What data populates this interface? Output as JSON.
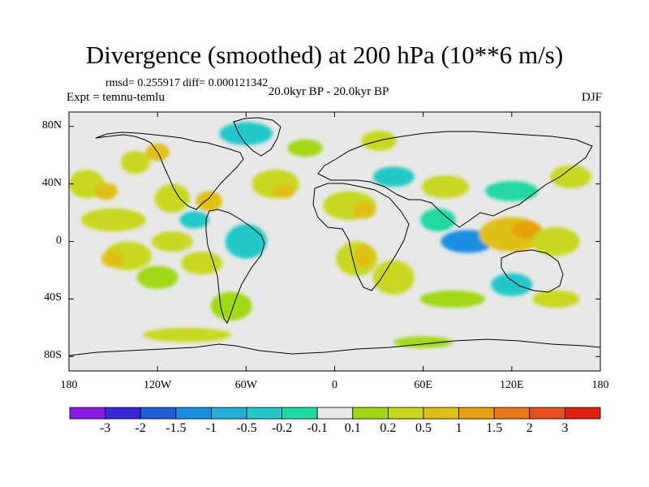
{
  "title": "Divergence (smoothed) at 200 hPa (10**6 m/s)",
  "stats": "rmsd= 0.255917 diff= 0.000121342",
  "experiment": "Expt = temnu-temlu",
  "period": "20.0kyr BP - 20.0kyr BP",
  "season": "DJF",
  "map": {
    "lat_range": [
      -90,
      90
    ],
    "lon_range": [
      -180,
      180
    ],
    "lat_ticks": [
      {
        "value": 80,
        "label": "80N"
      },
      {
        "value": 40,
        "label": "40N"
      },
      {
        "value": 0,
        "label": "0"
      },
      {
        "value": -40,
        "label": "40S"
      },
      {
        "value": -80,
        "label": "80S"
      }
    ],
    "lon_ticks": [
      {
        "value": -180,
        "label": "180"
      },
      {
        "value": -120,
        "label": "120W"
      },
      {
        "value": -60,
        "label": "60W"
      },
      {
        "value": 0,
        "label": "0"
      },
      {
        "value": 60,
        "label": "60E"
      },
      {
        "value": 120,
        "label": "120E"
      },
      {
        "value": 180,
        "label": "180"
      }
    ],
    "background_color": "#e8e8e8"
  },
  "colorbar": {
    "colors": [
      "#8a1ae6",
      "#3a28d8",
      "#1e5ed8",
      "#1a8ee0",
      "#22b0d8",
      "#22c8c8",
      "#20d8a0",
      "#e8e8e8",
      "#a0d818",
      "#c8d820",
      "#e0c018",
      "#e8a010",
      "#e87818",
      "#e85020",
      "#e02010"
    ],
    "labels": [
      "-3",
      "-2",
      "-1.5",
      "-1",
      "-0.5",
      "-0.2",
      "-0.1",
      "0.1",
      "0.2",
      "0.5",
      "1",
      "1.5",
      "2",
      "3"
    ]
  },
  "blobs": [
    {
      "lon": -150,
      "lat": 15,
      "rx": 22,
      "ry": 8,
      "level": 9
    },
    {
      "lon": -168,
      "lat": 40,
      "rx": 12,
      "ry": 10,
      "level": 9
    },
    {
      "lon": -155,
      "lat": 35,
      "rx": 8,
      "ry": 6,
      "level": 10
    },
    {
      "lon": -135,
      "lat": 55,
      "rx": 10,
      "ry": 8,
      "level": 9
    },
    {
      "lon": -120,
      "lat": 62,
      "rx": 8,
      "ry": 6,
      "level": 10
    },
    {
      "lon": -110,
      "lat": 30,
      "rx": 12,
      "ry": 10,
      "level": 9
    },
    {
      "lon": -85,
      "lat": 28,
      "rx": 9,
      "ry": 7,
      "level": 10
    },
    {
      "lon": -95,
      "lat": 15,
      "rx": 10,
      "ry": 6,
      "level": 5
    },
    {
      "lon": -110,
      "lat": 0,
      "rx": 14,
      "ry": 7,
      "level": 9
    },
    {
      "lon": -140,
      "lat": -10,
      "rx": 16,
      "ry": 10,
      "level": 9
    },
    {
      "lon": -150,
      "lat": -12,
      "rx": 8,
      "ry": 6,
      "level": 10
    },
    {
      "lon": -120,
      "lat": -25,
      "rx": 14,
      "ry": 8,
      "level": 8
    },
    {
      "lon": -90,
      "lat": -15,
      "rx": 14,
      "ry": 8,
      "level": 9
    },
    {
      "lon": -60,
      "lat": 0,
      "rx": 14,
      "ry": 12,
      "level": 5
    },
    {
      "lon": -70,
      "lat": -45,
      "rx": 14,
      "ry": 10,
      "level": 8
    },
    {
      "lon": -40,
      "lat": 40,
      "rx": 16,
      "ry": 10,
      "level": 9
    },
    {
      "lon": -35,
      "lat": 35,
      "rx": 8,
      "ry": 5,
      "level": 10
    },
    {
      "lon": -60,
      "lat": 75,
      "rx": 18,
      "ry": 8,
      "level": 5
    },
    {
      "lon": -20,
      "lat": 65,
      "rx": 12,
      "ry": 6,
      "level": 8
    },
    {
      "lon": 10,
      "lat": 25,
      "rx": 18,
      "ry": 10,
      "level": 9
    },
    {
      "lon": 20,
      "lat": 22,
      "rx": 8,
      "ry": 6,
      "level": 10
    },
    {
      "lon": 15,
      "lat": -12,
      "rx": 14,
      "ry": 12,
      "level": 9
    },
    {
      "lon": 20,
      "lat": -10,
      "rx": 7,
      "ry": 8,
      "level": 10
    },
    {
      "lon": 40,
      "lat": -25,
      "rx": 14,
      "ry": 12,
      "level": 9
    },
    {
      "lon": 40,
      "lat": 45,
      "rx": 14,
      "ry": 7,
      "level": 5
    },
    {
      "lon": 30,
      "lat": 70,
      "rx": 12,
      "ry": 7,
      "level": 9
    },
    {
      "lon": 70,
      "lat": 15,
      "rx": 12,
      "ry": 8,
      "level": 6
    },
    {
      "lon": 75,
      "lat": 38,
      "rx": 16,
      "ry": 8,
      "level": 9
    },
    {
      "lon": 90,
      "lat": 0,
      "rx": 18,
      "ry": 8,
      "level": 3
    },
    {
      "lon": 120,
      "lat": 5,
      "rx": 22,
      "ry": 12,
      "level": 10
    },
    {
      "lon": 130,
      "lat": 8,
      "rx": 10,
      "ry": 6,
      "level": 11
    },
    {
      "lon": 150,
      "lat": 0,
      "rx": 16,
      "ry": 10,
      "level": 9
    },
    {
      "lon": 120,
      "lat": 35,
      "rx": 18,
      "ry": 7,
      "level": 6
    },
    {
      "lon": 160,
      "lat": 45,
      "rx": 14,
      "ry": 8,
      "level": 9
    },
    {
      "lon": 120,
      "lat": -30,
      "rx": 14,
      "ry": 8,
      "level": 5
    },
    {
      "lon": 80,
      "lat": -40,
      "rx": 22,
      "ry": 6,
      "level": 8
    },
    {
      "lon": 150,
      "lat": -40,
      "rx": 16,
      "ry": 6,
      "level": 9
    },
    {
      "lon": -100,
      "lat": -65,
      "rx": 30,
      "ry": 5,
      "level": 9
    },
    {
      "lon": 60,
      "lat": -70,
      "rx": 20,
      "ry": 4,
      "level": 8
    }
  ]
}
